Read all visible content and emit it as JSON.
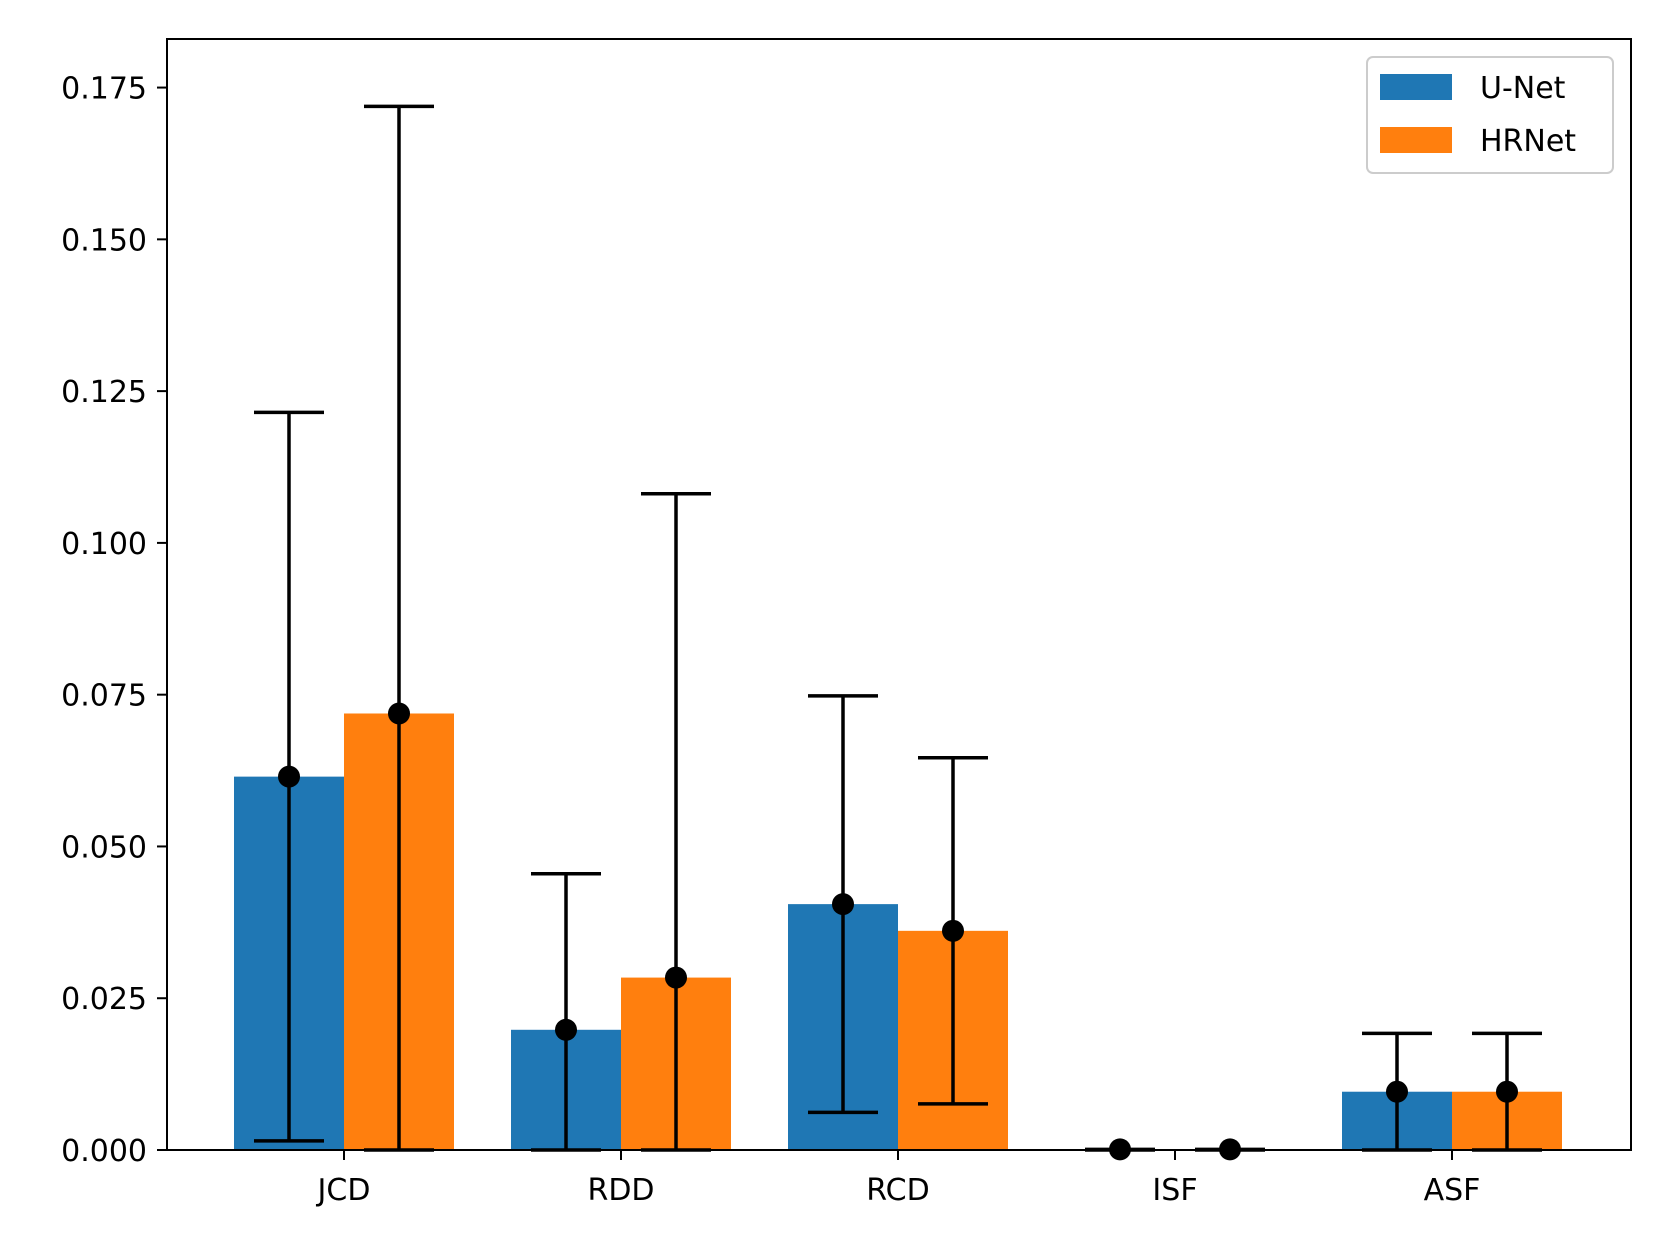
{
  "chart_data": {
    "type": "bar",
    "title": "",
    "xlabel": "",
    "ylabel": "",
    "categories": [
      "JCD",
      "RDD",
      "RCD",
      "ISF",
      "ASF"
    ],
    "ylim": [
      0,
      0.183
    ],
    "yticks": [
      "0.000",
      "0.025",
      "0.050",
      "0.075",
      "0.100",
      "0.125",
      "0.150",
      "0.175"
    ],
    "grid": false,
    "legend_position": "top-right",
    "series": [
      {
        "name": "U-Net",
        "color": "#1f77b4",
        "values": [
          0.0615,
          0.0198,
          0.0405,
          0.0001,
          0.0096
        ],
        "error_low": [
          0.0015,
          0.0,
          0.0062,
          0.0,
          0.0
        ],
        "error_high": [
          0.1215,
          0.0455,
          0.0748,
          0.0001,
          0.0192
        ]
      },
      {
        "name": "HRNet",
        "color": "#ff7f0e",
        "values": [
          0.0719,
          0.0284,
          0.0361,
          0.0001,
          0.0096
        ],
        "error_low": [
          0.0,
          0.0,
          0.0076,
          0.0,
          0.0
        ],
        "error_high": [
          0.1719,
          0.1081,
          0.0646,
          0.0001,
          0.0192
        ]
      }
    ]
  }
}
